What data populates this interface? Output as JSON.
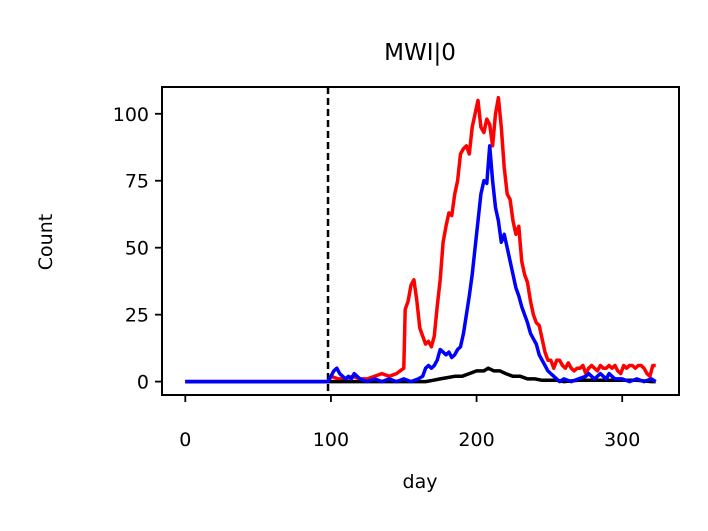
{
  "chart_data": {
    "type": "line",
    "title": "MWI|0",
    "xlabel": "day",
    "ylabel": "Count",
    "xlim": [
      -16,
      339
    ],
    "ylim": [
      -5,
      110
    ],
    "xticks": [
      0,
      100,
      200,
      300
    ],
    "yticks": [
      0,
      25,
      50,
      75,
      100
    ],
    "grid": false,
    "legend": "none",
    "vline": {
      "x": 98,
      "color": "#000000",
      "style": "dashed"
    },
    "series": [
      {
        "color": "#ff0000",
        "points": [
          [
            0,
            0
          ],
          [
            98,
            0
          ],
          [
            100,
            2
          ],
          [
            105,
            1
          ],
          [
            110,
            1
          ],
          [
            115,
            2
          ],
          [
            120,
            1
          ],
          [
            125,
            1
          ],
          [
            130,
            2
          ],
          [
            135,
            3
          ],
          [
            140,
            2
          ],
          [
            145,
            3
          ],
          [
            150,
            5
          ],
          [
            151,
            27
          ],
          [
            153,
            30
          ],
          [
            155,
            36
          ],
          [
            157,
            38
          ],
          [
            159,
            30
          ],
          [
            161,
            20
          ],
          [
            163,
            17
          ],
          [
            165,
            14
          ],
          [
            167,
            15
          ],
          [
            169,
            13
          ],
          [
            171,
            17
          ],
          [
            173,
            28
          ],
          [
            175,
            38
          ],
          [
            177,
            52
          ],
          [
            179,
            58
          ],
          [
            181,
            63
          ],
          [
            183,
            62
          ],
          [
            185,
            70
          ],
          [
            187,
            75
          ],
          [
            189,
            85
          ],
          [
            191,
            87
          ],
          [
            193,
            88
          ],
          [
            195,
            85
          ],
          [
            197,
            95
          ],
          [
            199,
            100
          ],
          [
            201,
            105
          ],
          [
            203,
            95
          ],
          [
            205,
            93
          ],
          [
            207,
            98
          ],
          [
            209,
            96
          ],
          [
            211,
            88
          ],
          [
            213,
            100
          ],
          [
            215,
            106
          ],
          [
            217,
            95
          ],
          [
            219,
            80
          ],
          [
            221,
            70
          ],
          [
            223,
            68
          ],
          [
            225,
            60
          ],
          [
            227,
            55
          ],
          [
            229,
            58
          ],
          [
            231,
            45
          ],
          [
            233,
            40
          ],
          [
            235,
            37
          ],
          [
            237,
            30
          ],
          [
            239,
            25
          ],
          [
            241,
            22
          ],
          [
            243,
            21
          ],
          [
            245,
            16
          ],
          [
            247,
            11
          ],
          [
            249,
            8
          ],
          [
            251,
            8
          ],
          [
            253,
            5
          ],
          [
            255,
            8
          ],
          [
            257,
            8
          ],
          [
            259,
            6
          ],
          [
            261,
            5
          ],
          [
            263,
            7
          ],
          [
            265,
            5
          ],
          [
            267,
            4
          ],
          [
            269,
            5
          ],
          [
            271,
            5
          ],
          [
            273,
            6
          ],
          [
            275,
            3
          ],
          [
            277,
            5
          ],
          [
            279,
            6
          ],
          [
            281,
            5
          ],
          [
            283,
            4
          ],
          [
            285,
            6
          ],
          [
            287,
            5
          ],
          [
            289,
            5
          ],
          [
            291,
            6
          ],
          [
            293,
            5
          ],
          [
            295,
            6
          ],
          [
            297,
            4
          ],
          [
            299,
            3
          ],
          [
            301,
            6
          ],
          [
            303,
            5
          ],
          [
            305,
            6
          ],
          [
            307,
            6
          ],
          [
            309,
            5
          ],
          [
            311,
            6
          ],
          [
            313,
            6
          ],
          [
            315,
            5
          ],
          [
            317,
            3
          ],
          [
            319,
            2
          ],
          [
            321,
            6
          ],
          [
            323,
            6
          ]
        ]
      },
      {
        "color": "#000000",
        "points": [
          [
            0,
            0
          ],
          [
            98,
            0
          ],
          [
            150,
            0
          ],
          [
            165,
            0
          ],
          [
            170,
            0.5
          ],
          [
            175,
            1
          ],
          [
            180,
            1.5
          ],
          [
            185,
            2
          ],
          [
            190,
            2
          ],
          [
            195,
            3
          ],
          [
            200,
            4
          ],
          [
            205,
            4
          ],
          [
            208,
            5
          ],
          [
            212,
            4
          ],
          [
            216,
            4
          ],
          [
            220,
            3
          ],
          [
            225,
            2
          ],
          [
            230,
            2
          ],
          [
            235,
            1
          ],
          [
            240,
            1
          ],
          [
            245,
            0.5
          ],
          [
            250,
            0.5
          ],
          [
            255,
            0.5
          ],
          [
            260,
            0
          ],
          [
            270,
            0.5
          ],
          [
            280,
            0.5
          ],
          [
            290,
            0.5
          ],
          [
            300,
            0.5
          ],
          [
            310,
            0.5
          ],
          [
            320,
            0
          ],
          [
            323,
            0
          ]
        ]
      },
      {
        "color": "#0000ff",
        "points": [
          [
            0,
            0
          ],
          [
            98,
            0
          ],
          [
            100,
            2
          ],
          [
            102,
            4
          ],
          [
            104,
            5
          ],
          [
            106,
            3
          ],
          [
            108,
            2
          ],
          [
            110,
            1
          ],
          [
            112,
            2
          ],
          [
            114,
            1
          ],
          [
            116,
            3
          ],
          [
            118,
            2
          ],
          [
            120,
            1
          ],
          [
            125,
            0
          ],
          [
            130,
            1
          ],
          [
            135,
            0
          ],
          [
            140,
            1
          ],
          [
            145,
            0
          ],
          [
            150,
            1
          ],
          [
            155,
            0
          ],
          [
            160,
            1
          ],
          [
            163,
            2
          ],
          [
            165,
            5
          ],
          [
            167,
            6
          ],
          [
            169,
            5
          ],
          [
            171,
            6
          ],
          [
            173,
            8
          ],
          [
            175,
            12
          ],
          [
            177,
            11
          ],
          [
            179,
            10
          ],
          [
            181,
            11
          ],
          [
            183,
            9
          ],
          [
            185,
            10
          ],
          [
            187,
            12
          ],
          [
            189,
            13
          ],
          [
            191,
            18
          ],
          [
            193,
            25
          ],
          [
            195,
            32
          ],
          [
            197,
            40
          ],
          [
            199,
            50
          ],
          [
            201,
            60
          ],
          [
            203,
            70
          ],
          [
            205,
            75
          ],
          [
            207,
            74
          ],
          [
            209,
            88
          ],
          [
            211,
            75
          ],
          [
            213,
            65
          ],
          [
            215,
            60
          ],
          [
            217,
            52
          ],
          [
            219,
            55
          ],
          [
            221,
            50
          ],
          [
            223,
            45
          ],
          [
            225,
            40
          ],
          [
            227,
            35
          ],
          [
            229,
            32
          ],
          [
            231,
            28
          ],
          [
            233,
            25
          ],
          [
            235,
            22
          ],
          [
            237,
            18
          ],
          [
            239,
            16
          ],
          [
            241,
            14
          ],
          [
            243,
            10
          ],
          [
            245,
            8
          ],
          [
            247,
            6
          ],
          [
            249,
            4
          ],
          [
            251,
            3
          ],
          [
            253,
            2
          ],
          [
            255,
            1
          ],
          [
            257,
            0
          ],
          [
            260,
            1
          ],
          [
            265,
            0
          ],
          [
            270,
            1
          ],
          [
            275,
            2
          ],
          [
            277,
            3
          ],
          [
            279,
            2
          ],
          [
            281,
            1
          ],
          [
            283,
            2
          ],
          [
            285,
            3
          ],
          [
            287,
            2
          ],
          [
            289,
            1
          ],
          [
            291,
            3
          ],
          [
            293,
            2
          ],
          [
            295,
            1
          ],
          [
            300,
            1
          ],
          [
            305,
            0
          ],
          [
            310,
            1
          ],
          [
            315,
            0
          ],
          [
            320,
            1
          ],
          [
            323,
            0
          ]
        ]
      }
    ]
  }
}
